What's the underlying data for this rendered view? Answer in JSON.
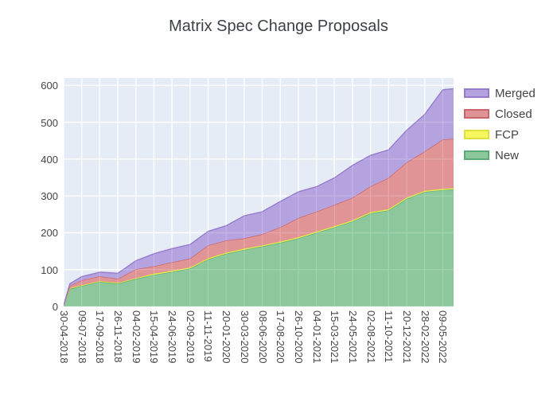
{
  "title": "Matrix Spec Change Proposals",
  "colors": {
    "page_bg": "#ffffff",
    "plot_bg": "#e5ecf6",
    "grid": "#ffffff",
    "tick_text": "#444444",
    "title_text": "#3d4046"
  },
  "chart_data": {
    "type": "area",
    "stacked": true,
    "title": "Matrix Spec Change Proposals",
    "xlabel": "",
    "ylabel": "",
    "ylim": [
      0,
      620
    ],
    "yticks": [
      0,
      100,
      200,
      300,
      400,
      500,
      600
    ],
    "grid": true,
    "legend_position": "right",
    "categories": [
      "30-04-2018",
      "09-07-2018",
      "17-09-2018",
      "26-11-2018",
      "04-02-2019",
      "15-04-2019",
      "24-06-2019",
      "02-09-2019",
      "11-11-2019",
      "20-01-2020",
      "30-03-2020",
      "08-06-2020",
      "17-08-2020",
      "26-10-2020",
      "04-01-2021",
      "15-03-2021",
      "24-05-2021",
      "02-08-2021",
      "11-10-2021",
      "20-12-2021",
      "28-02-2022",
      "09-05-2022"
    ],
    "samples_x_in_tick_units": [
      0,
      0.35,
      1,
      2,
      3,
      4,
      5,
      6,
      7,
      8,
      9,
      10,
      11,
      12,
      13,
      14,
      15,
      16,
      17,
      18,
      19,
      20,
      21,
      21.6
    ],
    "series": [
      {
        "name": "New",
        "fill": "#8cc89c",
        "line": "#5bab76",
        "values": [
          3,
          48,
          56,
          67,
          62,
          75,
          86,
          94,
          103,
          128,
          143,
          154,
          163,
          173,
          185,
          200,
          215,
          231,
          253,
          261,
          292,
          311,
          316,
          318
        ]
      },
      {
        "name": "FCP",
        "fill": "#f6f65e",
        "line": "#e0e03c",
        "values": [
          0,
          2,
          2,
          2,
          2,
          2,
          3,
          3,
          3,
          3,
          3,
          3,
          3,
          3,
          3,
          3,
          3,
          3,
          3,
          3,
          3,
          3,
          3,
          3
        ]
      },
      {
        "name": "Closed",
        "fill": "#e09496",
        "line": "#c9666a",
        "values": [
          0,
          6,
          13,
          13,
          11,
          24,
          20,
          23,
          24,
          35,
          33,
          28,
          30,
          39,
          52,
          54,
          58,
          61,
          70,
          85,
          96,
          107,
          134,
          134
        ]
      },
      {
        "name": "Merged",
        "fill": "#b5a3e0",
        "line": "#967bcd",
        "values": [
          0,
          6,
          10,
          11,
          15,
          23,
          34,
          37,
          38,
          38,
          40,
          61,
          61,
          70,
          71,
          68,
          73,
          88,
          84,
          76,
          87,
          100,
          135,
          136
        ]
      }
    ],
    "legend_entries": [
      "Merged",
      "Closed",
      "FCP",
      "New"
    ]
  }
}
